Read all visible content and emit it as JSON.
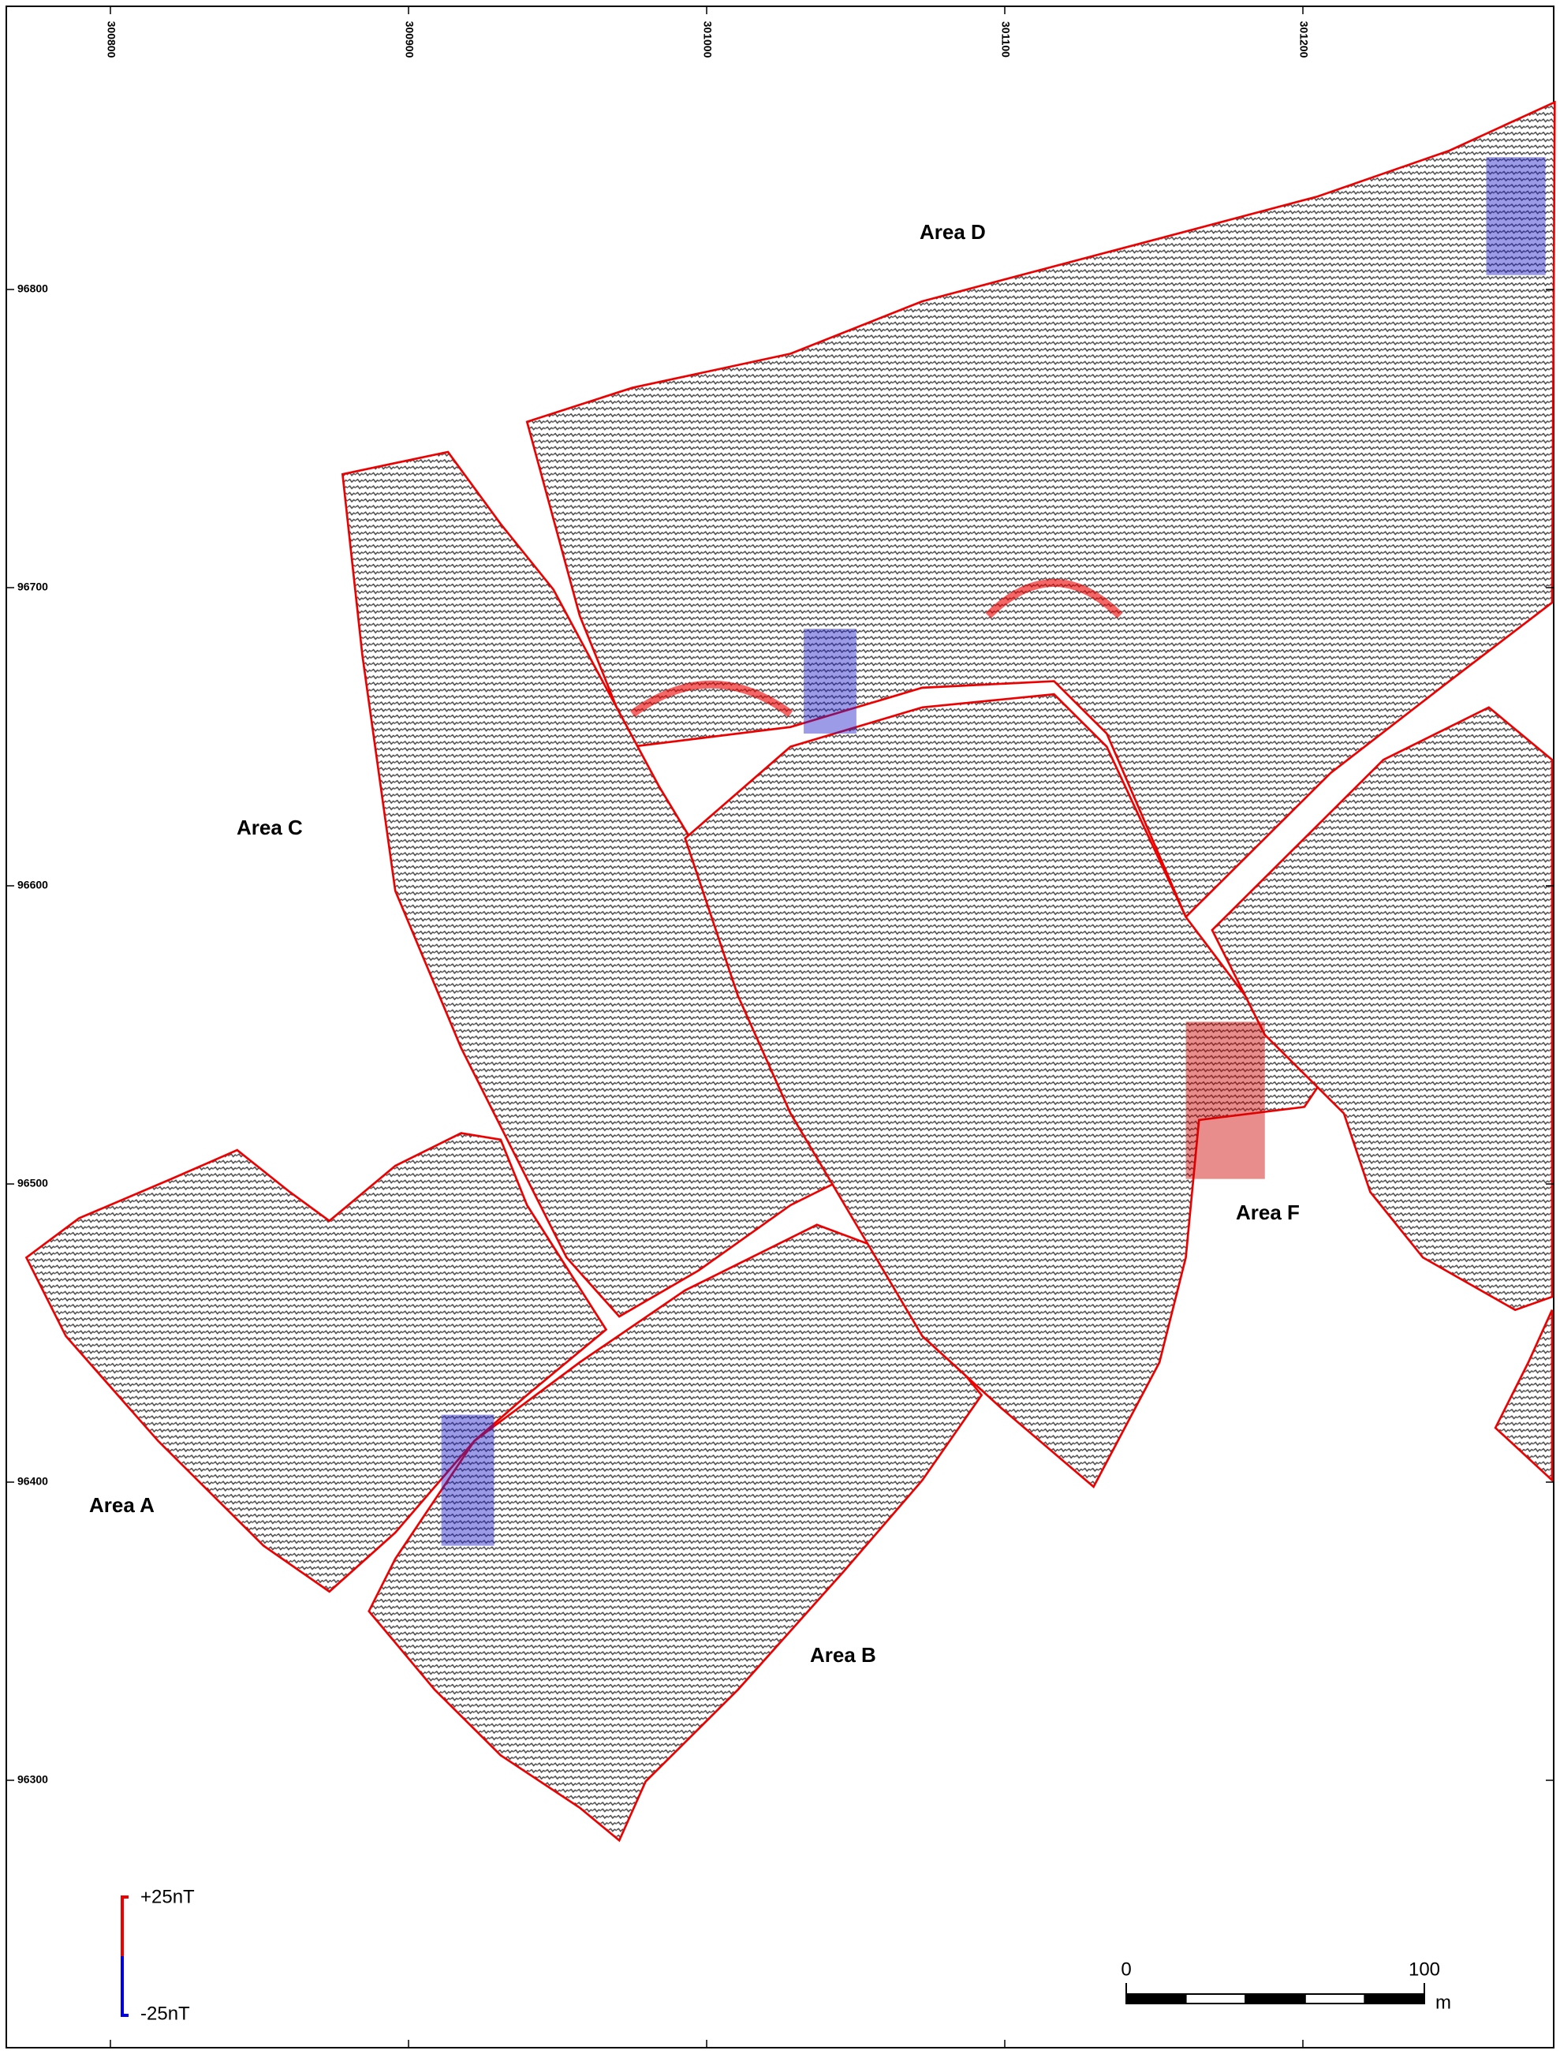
{
  "map": {
    "eastings": [
      300800,
      300900,
      301000,
      301100,
      301200
    ],
    "northings": [
      96800,
      96700,
      96600,
      96500,
      96400,
      96300
    ],
    "areas": [
      {
        "label": "Area A"
      },
      {
        "label": "Area B"
      },
      {
        "label": "Area C"
      },
      {
        "label": "Area D"
      },
      {
        "label": "Area F"
      }
    ],
    "legend": {
      "max": "+25nT",
      "min": "-25nT"
    },
    "scale_bar": {
      "ticks": [
        0,
        100
      ],
      "unit": "m"
    }
  }
}
